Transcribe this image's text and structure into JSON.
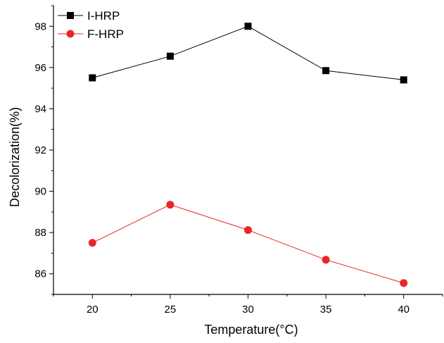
{
  "chart_data": {
    "type": "line",
    "title": "",
    "xlabel": "Temperature(°C)",
    "ylabel": "Decolorization(%)",
    "x": [
      20,
      25,
      30,
      35,
      40
    ],
    "xlim": [
      17.5,
      42.5
    ],
    "ylim": [
      85,
      99
    ],
    "x_ticks": [
      "20",
      "25",
      "30",
      "35",
      "40"
    ],
    "y_ticks": [
      "86",
      "88",
      "90",
      "92",
      "94",
      "96",
      "98"
    ],
    "grid": false,
    "legend_position": "top-left",
    "series": [
      {
        "name": "I-HRP",
        "color": "#000000",
        "marker": "square",
        "values": [
          95.5,
          96.55,
          98.0,
          95.85,
          95.4
        ]
      },
      {
        "name": "F-HRP",
        "color": "#e8262a",
        "marker": "circle",
        "values": [
          87.5,
          89.35,
          88.12,
          86.68,
          85.55
        ]
      }
    ]
  }
}
